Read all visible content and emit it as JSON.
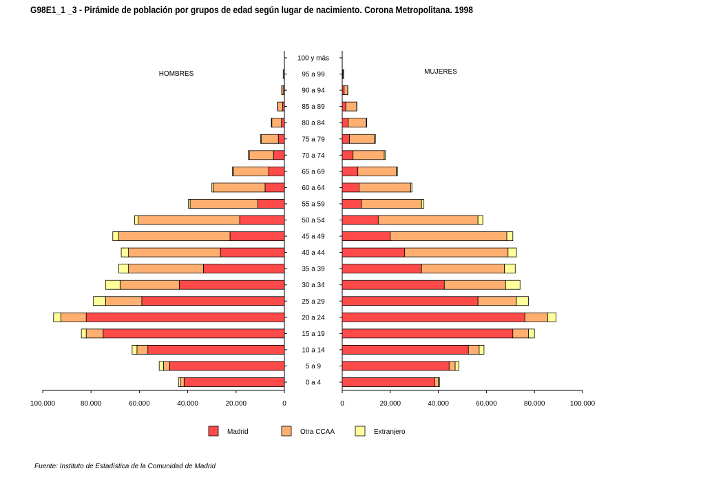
{
  "title": "G98E1_1 _3 - Pirámide de población por grupos de edad según lugar de nacimiento. Corona Metropolitana.  1998",
  "source": "Fuente: Instituto de Estadística de la Comunidad de Madrid",
  "colors": {
    "Madrid": "#ff4a4a",
    "Otra CCAA": "#ffb070",
    "Extranjero": "#ffff99"
  },
  "chart_data": {
    "type": "bar",
    "subtype": "population-pyramid-stacked",
    "panels": [
      "HOMBRES",
      "MUJERES"
    ],
    "categories": [
      "0 a 4",
      "5 a 9",
      "10 a 14",
      "15 a 19",
      "20 a 24",
      "25 a 29",
      "30 a 34",
      "35 a 39",
      "40 a  44",
      "45 a 49",
      "50 a 54",
      "55 a 59",
      "60 a 64",
      "65 a 69",
      "70 a 74",
      "75 a 79",
      "80 a 84",
      "85 a 89",
      "90 a 94",
      "95 a 99",
      "100 y más"
    ],
    "xlim": [
      0,
      100000
    ],
    "x_ticks": [
      0,
      20000,
      40000,
      60000,
      80000,
      100000
    ],
    "x_tick_labels": [
      "0",
      "20.000",
      "40.000",
      "60.000",
      "80.000",
      "100.000"
    ],
    "legend": [
      "Madrid",
      "Otra CCAA",
      "Extranjero"
    ],
    "legend_position": "bottom",
    "series": {
      "HOMBRES": [
        {
          "name": "Madrid",
          "values": [
            41500,
            47500,
            56500,
            75000,
            82000,
            59000,
            43500,
            33500,
            26500,
            22500,
            18500,
            11000,
            8000,
            6500,
            4500,
            2500,
            1200,
            700,
            300,
            100,
            0
          ]
        },
        {
          "name": "Otra CCAA",
          "values": [
            1500,
            2500,
            4500,
            7000,
            10500,
            15000,
            24500,
            31000,
            38000,
            46000,
            42000,
            28000,
            21500,
            14500,
            10000,
            7000,
            4000,
            2000,
            700,
            400,
            0
          ]
        },
        {
          "name": "Extranjero",
          "values": [
            800,
            1800,
            2000,
            2000,
            3000,
            5000,
            6000,
            4000,
            3000,
            2500,
            1500,
            700,
            500,
            500,
            400,
            300,
            200,
            100,
            100,
            0,
            0
          ]
        }
      ],
      "MUJERES": [
        {
          "name": "Madrid",
          "values": [
            38500,
            44500,
            52500,
            71000,
            76000,
            56500,
            42500,
            33000,
            26000,
            20000,
            15000,
            8000,
            7000,
            6500,
            4500,
            3000,
            2500,
            1500,
            800,
            300,
            0
          ]
        },
        {
          "name": "Otra CCAA",
          "values": [
            1500,
            2500,
            4500,
            6500,
            9500,
            16000,
            25500,
            34500,
            43000,
            48500,
            41500,
            25000,
            21500,
            16000,
            13000,
            10500,
            7500,
            4500,
            1500,
            300,
            0
          ]
        },
        {
          "name": "Extranjero",
          "values": [
            500,
            1500,
            2000,
            2500,
            3500,
            5000,
            6000,
            4500,
            3500,
            2500,
            2000,
            1000,
            500,
            500,
            500,
            300,
            200,
            100,
            50,
            0,
            0
          ]
        }
      ]
    }
  }
}
